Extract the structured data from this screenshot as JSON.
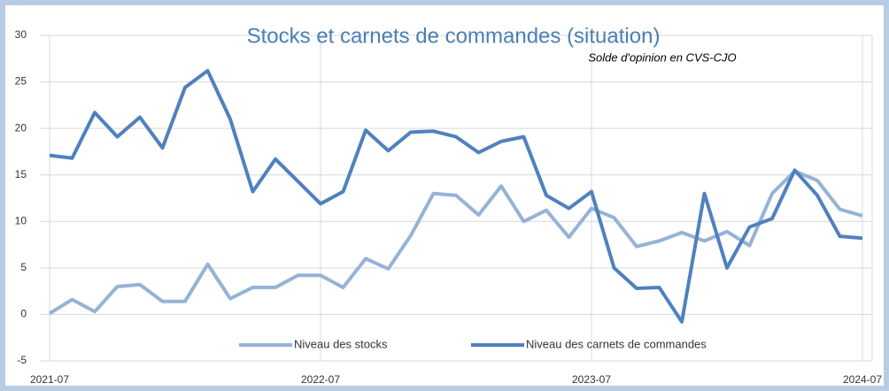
{
  "chart_data": {
    "type": "line",
    "title": "Stocks et carnets de commandes (situation)",
    "subtitle": "Solde d'opinion en CVS-CJO",
    "categories": [
      "2021-07",
      null,
      null,
      null,
      null,
      null,
      null,
      null,
      null,
      null,
      null,
      null,
      "2022-07",
      null,
      null,
      null,
      null,
      null,
      null,
      null,
      null,
      null,
      null,
      null,
      "2023-07",
      null,
      null,
      null,
      null,
      null,
      null,
      null,
      null,
      null,
      null,
      null,
      "2024-07"
    ],
    "series": [
      {
        "name": "Niveau des stocks",
        "color": "#95b3d7",
        "values": [
          0.1,
          1.6,
          0.3,
          3.0,
          3.2,
          1.4,
          1.4,
          5.4,
          1.7,
          2.9,
          2.9,
          4.2,
          4.2,
          2.9,
          6.0,
          4.9,
          8.5,
          13.0,
          12.8,
          10.7,
          13.8,
          10.0,
          11.2,
          8.3,
          11.4,
          10.4,
          7.3,
          7.9,
          8.8,
          7.9,
          8.9,
          7.4,
          13.0,
          15.4,
          14.4,
          11.3,
          10.6
        ]
      },
      {
        "name": "Niveau des carnets de commandes",
        "color": "#4f81bd",
        "values": [
          17.1,
          16.8,
          21.7,
          19.1,
          21.2,
          17.9,
          24.4,
          26.2,
          21.0,
          13.2,
          16.7,
          14.3,
          11.9,
          13.2,
          19.8,
          17.6,
          19.6,
          19.7,
          19.1,
          17.4,
          18.6,
          19.1,
          12.8,
          11.4,
          13.2,
          5.0,
          2.8,
          2.9,
          -0.8,
          13.0,
          5.0,
          9.4,
          10.3,
          15.5,
          12.8,
          8.4,
          8.2
        ]
      }
    ],
    "ylim": [
      -5,
      30
    ],
    "yticks": [
      -5,
      0,
      5,
      10,
      15,
      20,
      25,
      30
    ],
    "grid": true,
    "legend": "bottom"
  }
}
